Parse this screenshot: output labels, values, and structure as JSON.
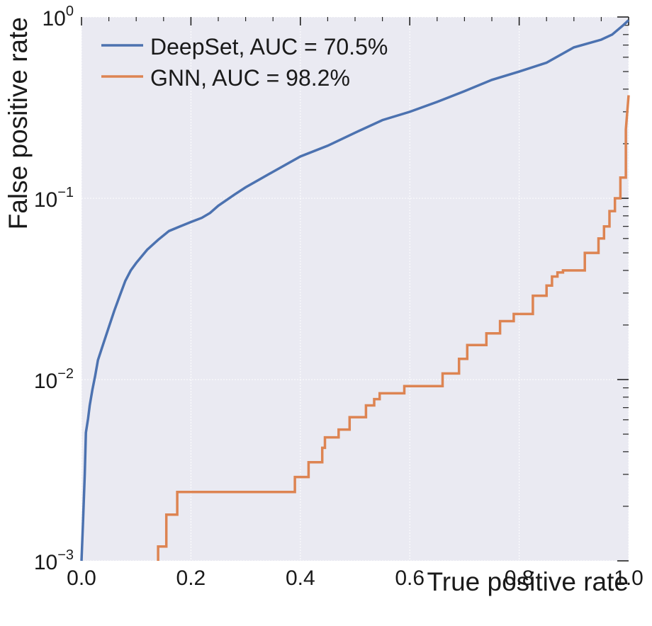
{
  "chart_data": {
    "type": "line",
    "title": "",
    "xlabel": "True positive rate",
    "ylabel": "False positive rate",
    "xlim": [
      0.0,
      1.0
    ],
    "ylim": [
      0.001,
      1.0
    ],
    "y_scale": "log",
    "grid": true,
    "legend_position": "top-left",
    "x_ticks": [
      {
        "value": 0.0,
        "label": "0.0"
      },
      {
        "value": 0.2,
        "label": "0.2"
      },
      {
        "value": 0.4,
        "label": "0.4"
      },
      {
        "value": 0.6,
        "label": "0.6"
      },
      {
        "value": 0.8,
        "label": "0.8"
      },
      {
        "value": 1.0,
        "label": "1.0"
      }
    ],
    "y_ticks": [
      {
        "value": 0.001,
        "base": "10",
        "exp": "−3"
      },
      {
        "value": 0.01,
        "base": "10",
        "exp": "−2"
      },
      {
        "value": 0.1,
        "base": "10",
        "exp": "−1"
      },
      {
        "value": 1.0,
        "base": "10",
        "exp": "0"
      }
    ],
    "series": [
      {
        "name": "DeepSet, AUC = 70.5%",
        "color": "#4c72b0",
        "x": [
          0.0,
          0.003,
          0.006,
          0.008,
          0.012,
          0.015,
          0.02,
          0.025,
          0.03,
          0.04,
          0.05,
          0.06,
          0.07,
          0.08,
          0.09,
          0.1,
          0.12,
          0.14,
          0.16,
          0.18,
          0.2,
          0.22,
          0.235,
          0.25,
          0.28,
          0.3,
          0.35,
          0.4,
          0.45,
          0.5,
          0.55,
          0.6,
          0.65,
          0.7,
          0.75,
          0.8,
          0.85,
          0.9,
          0.95,
          0.97,
          0.99,
          1.0
        ],
        "y": [
          0.001,
          0.0017,
          0.003,
          0.0051,
          0.0061,
          0.0072,
          0.0088,
          0.0105,
          0.0128,
          0.0158,
          0.0195,
          0.024,
          0.029,
          0.035,
          0.04,
          0.044,
          0.052,
          0.059,
          0.066,
          0.07,
          0.074,
          0.078,
          0.083,
          0.091,
          0.105,
          0.115,
          0.14,
          0.17,
          0.195,
          0.23,
          0.27,
          0.3,
          0.34,
          0.39,
          0.45,
          0.5,
          0.56,
          0.68,
          0.75,
          0.8,
          0.9,
          0.96
        ]
      },
      {
        "name": "GNN, AUC = 98.2%",
        "color": "#dd8452",
        "x": [
          0.14,
          0.14,
          0.155,
          0.155,
          0.175,
          0.175,
          0.39,
          0.39,
          0.415,
          0.415,
          0.44,
          0.44,
          0.445,
          0.445,
          0.47,
          0.47,
          0.49,
          0.49,
          0.52,
          0.52,
          0.535,
          0.535,
          0.545,
          0.545,
          0.59,
          0.59,
          0.66,
          0.66,
          0.69,
          0.69,
          0.705,
          0.705,
          0.74,
          0.74,
          0.765,
          0.765,
          0.79,
          0.79,
          0.825,
          0.825,
          0.85,
          0.85,
          0.86,
          0.86,
          0.87,
          0.87,
          0.88,
          0.88,
          0.92,
          0.92,
          0.945,
          0.945,
          0.955,
          0.955,
          0.965,
          0.965,
          0.975,
          0.975,
          0.985,
          0.985,
          0.995,
          0.995,
          1.0
        ],
        "y": [
          0.001,
          0.0012,
          0.0012,
          0.0018,
          0.0018,
          0.0024,
          0.0024,
          0.0029,
          0.0029,
          0.0035,
          0.0035,
          0.0042,
          0.0042,
          0.0048,
          0.0048,
          0.0053,
          0.0053,
          0.0062,
          0.0062,
          0.0072,
          0.0072,
          0.0078,
          0.0078,
          0.0084,
          0.0084,
          0.0092,
          0.0092,
          0.0108,
          0.0108,
          0.013,
          0.013,
          0.0155,
          0.0155,
          0.018,
          0.018,
          0.021,
          0.021,
          0.023,
          0.023,
          0.029,
          0.029,
          0.033,
          0.033,
          0.037,
          0.037,
          0.039,
          0.039,
          0.04,
          0.04,
          0.05,
          0.05,
          0.06,
          0.06,
          0.07,
          0.07,
          0.085,
          0.085,
          0.1,
          0.1,
          0.13,
          0.13,
          0.24,
          0.37
        ]
      }
    ]
  }
}
